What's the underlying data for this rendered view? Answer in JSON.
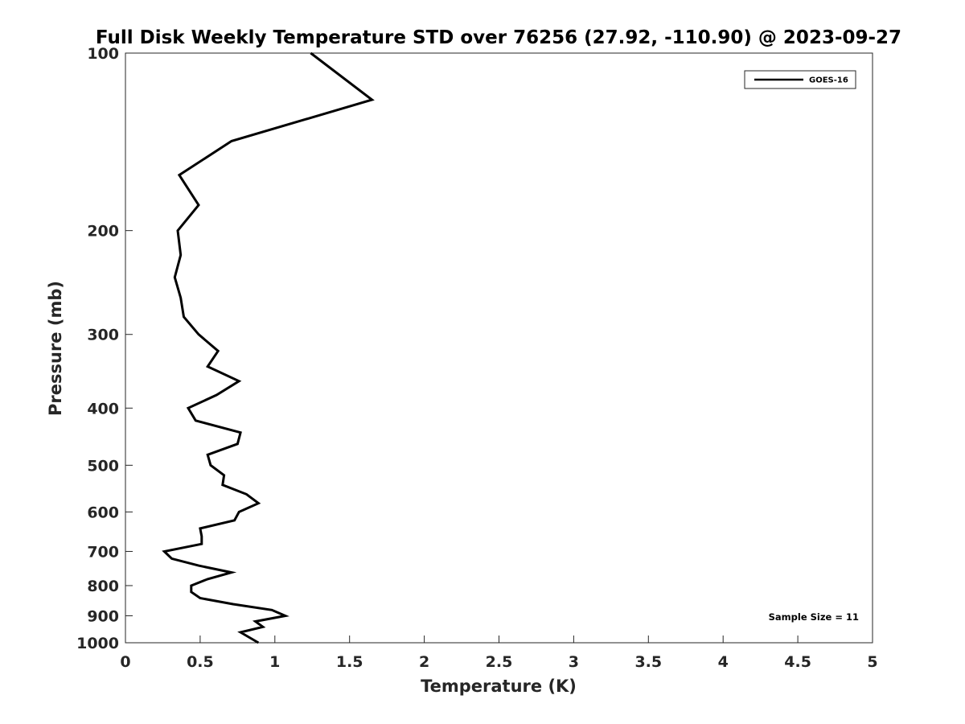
{
  "chart_data": {
    "type": "line",
    "title": "Full Disk Weekly Temperature STD over 76256 (27.92, -110.90) @ 2023-09-27",
    "xlabel": "Temperature (K)",
    "ylabel": "Pressure (mb)",
    "xlim": [
      0,
      5
    ],
    "ylim": [
      1000,
      100
    ],
    "y_scale": "log",
    "y_reversed": true,
    "xticks": [
      0,
      0.5,
      1,
      1.5,
      2,
      2.5,
      3,
      3.5,
      4,
      4.5,
      5
    ],
    "xtick_labels": [
      "0",
      "0.5",
      "1",
      "1.5",
      "2",
      "2.5",
      "3",
      "3.5",
      "4",
      "4.5",
      "5"
    ],
    "yticks": [
      100,
      200,
      300,
      400,
      500,
      600,
      700,
      800,
      900,
      1000
    ],
    "ytick_labels": [
      "100",
      "200",
      "300",
      "400",
      "500",
      "600",
      "700",
      "800",
      "900",
      "1000"
    ],
    "grid": false,
    "legend_position": "top-right",
    "series": [
      {
        "name": "GOES-16",
        "color": "#000000",
        "points": [
          [
            1.24,
            100
          ],
          [
            1.65,
            120
          ],
          [
            0.71,
            141
          ],
          [
            0.36,
            161
          ],
          [
            0.49,
            181
          ],
          [
            0.35,
            200
          ],
          [
            0.37,
            220
          ],
          [
            0.33,
            240
          ],
          [
            0.37,
            260
          ],
          [
            0.39,
            280
          ],
          [
            0.49,
            300
          ],
          [
            0.62,
            320
          ],
          [
            0.55,
            340
          ],
          [
            0.76,
            360
          ],
          [
            0.61,
            380
          ],
          [
            0.42,
            400
          ],
          [
            0.47,
            420
          ],
          [
            0.77,
            440
          ],
          [
            0.75,
            460
          ],
          [
            0.55,
            480
          ],
          [
            0.57,
            500
          ],
          [
            0.66,
            520
          ],
          [
            0.65,
            540
          ],
          [
            0.81,
            560
          ],
          [
            0.89,
            580
          ],
          [
            0.76,
            600
          ],
          [
            0.73,
            620
          ],
          [
            0.5,
            640
          ],
          [
            0.51,
            660
          ],
          [
            0.51,
            680
          ],
          [
            0.26,
            700
          ],
          [
            0.31,
            720
          ],
          [
            0.49,
            740
          ],
          [
            0.71,
            760
          ],
          [
            0.55,
            780
          ],
          [
            0.44,
            800
          ],
          [
            0.44,
            820
          ],
          [
            0.5,
            840
          ],
          [
            0.72,
            860
          ],
          [
            0.98,
            880
          ],
          [
            1.07,
            900
          ],
          [
            0.87,
            920
          ],
          [
            0.92,
            940
          ],
          [
            0.77,
            960
          ],
          [
            0.89,
            1000
          ]
        ]
      }
    ],
    "annotation": "Sample Size = 11"
  }
}
